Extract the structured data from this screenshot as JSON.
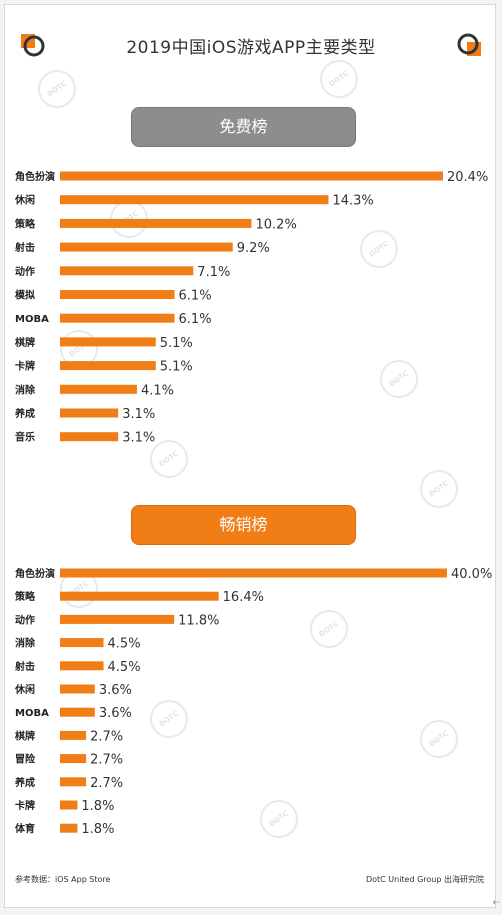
{
  "title": "2019中国iOS游戏APP主要类型",
  "colors": {
    "bar": "#f07d16",
    "free_pill": "#8d8d8d",
    "paid_pill": "#f07d16"
  },
  "chart_data": [
    {
      "type": "bar",
      "orientation": "horizontal",
      "title": "免费榜",
      "categories": [
        "角色扮演",
        "休闲",
        "策略",
        "射击",
        "动作",
        "模拟",
        "MOBA",
        "棋牌",
        "卡牌",
        "消除",
        "养成",
        "音乐"
      ],
      "values": [
        20.4,
        14.3,
        10.2,
        9.2,
        7.1,
        6.1,
        6.1,
        5.1,
        5.1,
        4.1,
        3.1,
        3.1
      ],
      "labels": [
        "20.4%",
        "14.3%",
        "10.2%",
        "9.2%",
        "7.1%",
        "6.1%",
        "6.1%",
        "5.1%",
        "5.1%",
        "4.1%",
        "3.1%",
        "3.1%"
      ],
      "xlim": [
        0,
        20.4
      ]
    },
    {
      "type": "bar",
      "orientation": "horizontal",
      "title": "畅销榜",
      "categories": [
        "角色扮演",
        "策略",
        "动作",
        "消除",
        "射击",
        "休闲",
        "MOBA",
        "棋牌",
        "冒险",
        "养成",
        "卡牌",
        "体育"
      ],
      "values": [
        40.0,
        16.4,
        11.8,
        4.5,
        4.5,
        3.6,
        3.6,
        2.7,
        2.7,
        2.7,
        1.8,
        1.8
      ],
      "labels": [
        "40.0%",
        "16.4%",
        "11.8%",
        "4.5%",
        "4.5%",
        "3.6%",
        "3.6%",
        "2.7%",
        "2.7%",
        "2.7%",
        "1.8%",
        "1.8%"
      ],
      "xlim": [
        0,
        40.0
      ]
    }
  ],
  "footer": {
    "source": "参考数据：iOS App Store",
    "credit": "DotC United Group  出海研究院"
  },
  "watermark": "DOTC"
}
